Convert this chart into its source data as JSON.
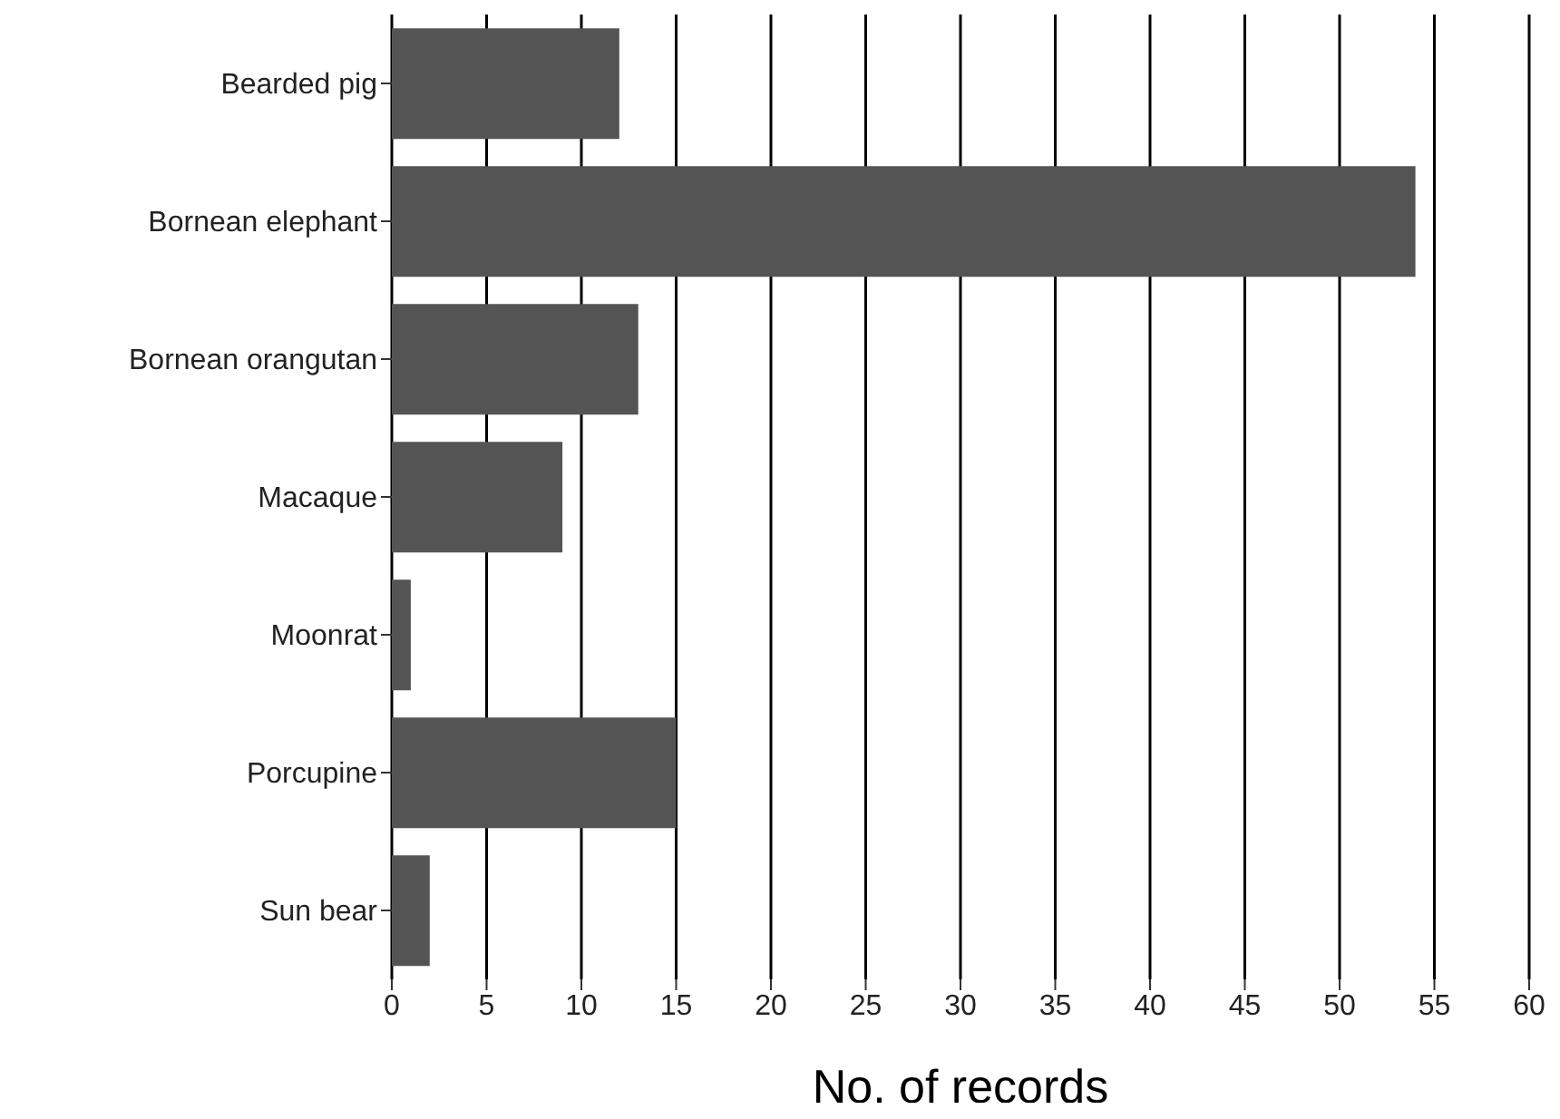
{
  "chart_data": {
    "type": "bar",
    "orientation": "horizontal",
    "xlabel": "No. of records",
    "categories": [
      "Bearded pig",
      "Bornean elephant",
      "Bornean orangutan",
      "Macaque",
      "Moonrat",
      "Porcupine",
      "Sun bear"
    ],
    "values": [
      12,
      54,
      13,
      9,
      1,
      15,
      2
    ],
    "color": "#545454",
    "xlim": [
      0,
      60
    ],
    "xticks": [
      0,
      5,
      10,
      15,
      20,
      25,
      30,
      35,
      40,
      45,
      50,
      55,
      60
    ],
    "grid": "x"
  }
}
